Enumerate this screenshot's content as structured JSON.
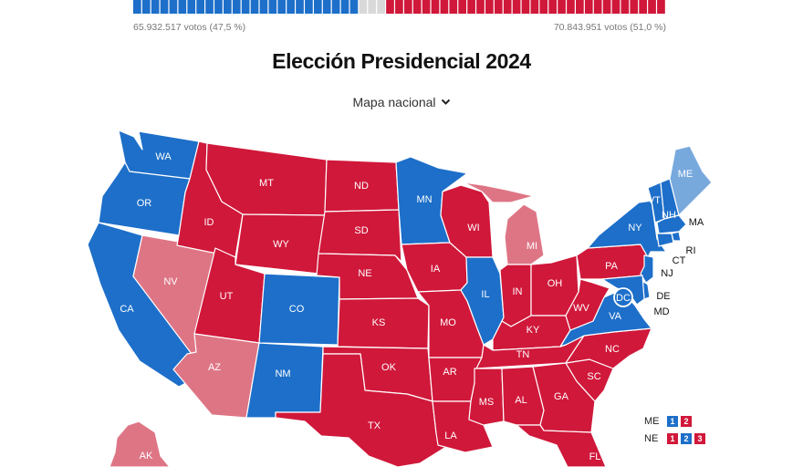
{
  "results_bar": {
    "left_votes": "65.932.517 votos (47,5 %)",
    "right_votes": "70.843.951 votos (51,0 %)",
    "left_color": "#1d6fc9",
    "right_color": "#d0183a",
    "neutral_color": "#d9d9d9",
    "dem_segments": 25,
    "neutral_segments": 3,
    "rep_segments": 31
  },
  "header": {
    "title": "Elección Presidencial 2024",
    "map_selector": "Mapa nacional",
    "selector_icon": "chevron-down-icon"
  },
  "colors": {
    "dem": "#1d6fc9",
    "dem_light": "#78a9dd",
    "rep": "#d0183a",
    "rep_light": "#de7585",
    "border": "#ffffff"
  },
  "states": [
    {
      "id": "WA",
      "label": "WA",
      "party": "dem"
    },
    {
      "id": "OR",
      "label": "OR",
      "party": "dem"
    },
    {
      "id": "CA",
      "label": "CA",
      "party": "dem"
    },
    {
      "id": "NV",
      "label": "NV",
      "party": "rep_light"
    },
    {
      "id": "ID",
      "label": "ID",
      "party": "rep"
    },
    {
      "id": "MT",
      "label": "MT",
      "party": "rep"
    },
    {
      "id": "WY",
      "label": "WY",
      "party": "rep"
    },
    {
      "id": "UT",
      "label": "UT",
      "party": "rep"
    },
    {
      "id": "AZ",
      "label": "AZ",
      "party": "rep_light"
    },
    {
      "id": "CO",
      "label": "CO",
      "party": "dem"
    },
    {
      "id": "NM",
      "label": "NM",
      "party": "dem"
    },
    {
      "id": "ND",
      "label": "ND",
      "party": "rep"
    },
    {
      "id": "SD",
      "label": "SD",
      "party": "rep"
    },
    {
      "id": "NE",
      "label": "NE",
      "party": "rep"
    },
    {
      "id": "KS",
      "label": "KS",
      "party": "rep"
    },
    {
      "id": "OK",
      "label": "OK",
      "party": "rep"
    },
    {
      "id": "TX",
      "label": "TX",
      "party": "rep"
    },
    {
      "id": "MN",
      "label": "MN",
      "party": "dem"
    },
    {
      "id": "IA",
      "label": "IA",
      "party": "rep"
    },
    {
      "id": "MO",
      "label": "MO",
      "party": "rep"
    },
    {
      "id": "AR",
      "label": "AR",
      "party": "rep"
    },
    {
      "id": "LA",
      "label": "LA",
      "party": "rep"
    },
    {
      "id": "WI",
      "label": "WI",
      "party": "rep"
    },
    {
      "id": "IL",
      "label": "IL",
      "party": "dem"
    },
    {
      "id": "MI",
      "label": "MI",
      "party": "rep_light"
    },
    {
      "id": "IN",
      "label": "IN",
      "party": "rep"
    },
    {
      "id": "OH",
      "label": "OH",
      "party": "rep"
    },
    {
      "id": "KY",
      "label": "KY",
      "party": "rep"
    },
    {
      "id": "TN",
      "label": "TN",
      "party": "rep"
    },
    {
      "id": "MS",
      "label": "MS",
      "party": "rep"
    },
    {
      "id": "AL",
      "label": "AL",
      "party": "rep"
    },
    {
      "id": "GA",
      "label": "GA",
      "party": "rep"
    },
    {
      "id": "FL",
      "label": "FL",
      "party": "rep"
    },
    {
      "id": "SC",
      "label": "SC",
      "party": "rep"
    },
    {
      "id": "NC",
      "label": "NC",
      "party": "rep"
    },
    {
      "id": "VA",
      "label": "VA",
      "party": "dem"
    },
    {
      "id": "WV",
      "label": "WV",
      "party": "rep"
    },
    {
      "id": "PA",
      "label": "PA",
      "party": "rep"
    },
    {
      "id": "NY",
      "label": "NY",
      "party": "dem"
    },
    {
      "id": "VT",
      "label": "VT",
      "party": "dem"
    },
    {
      "id": "NH",
      "label": "NH",
      "party": "dem"
    },
    {
      "id": "ME",
      "label": "ME",
      "party": "dem_light"
    },
    {
      "id": "MA",
      "label": "MA",
      "party": "dem"
    },
    {
      "id": "RI",
      "label": "RI",
      "party": "dem"
    },
    {
      "id": "CT",
      "label": "CT",
      "party": "dem"
    },
    {
      "id": "NJ",
      "label": "NJ",
      "party": "dem"
    },
    {
      "id": "DE",
      "label": "DE",
      "party": "dem"
    },
    {
      "id": "MD",
      "label": "MD",
      "party": "dem"
    },
    {
      "id": "DC",
      "label": "DC",
      "party": "dem"
    },
    {
      "id": "AK",
      "label": "AK",
      "party": "rep_light"
    }
  ],
  "legend": {
    "me": {
      "label": "ME",
      "districts": [
        {
          "n": "1",
          "party": "dem"
        },
        {
          "n": "2",
          "party": "rep"
        }
      ]
    },
    "ne": {
      "label": "NE",
      "districts": [
        {
          "n": "1",
          "party": "rep"
        },
        {
          "n": "2",
          "party": "dem"
        },
        {
          "n": "3",
          "party": "rep"
        }
      ]
    }
  }
}
